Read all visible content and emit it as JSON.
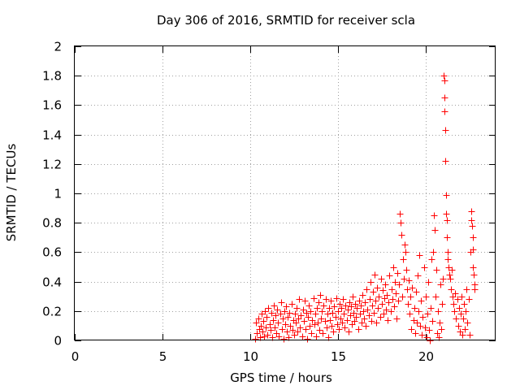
{
  "chart_data": {
    "type": "scatter",
    "title": "Day 306 of 2016, SRMTID for receiver scla",
    "xlabel": "GPS time / hours",
    "ylabel": "SRMTID / TECUs",
    "xlim": [
      0,
      24
    ],
    "ylim": [
      0,
      2
    ],
    "xticks": [
      0,
      5,
      10,
      15,
      20
    ],
    "xtick_labels": [
      "0",
      "5",
      "10",
      "15",
      "20"
    ],
    "yticks": [
      0,
      0.2,
      0.4,
      0.6,
      0.8,
      1,
      1.2,
      1.4,
      1.6,
      1.8,
      2
    ],
    "ytick_labels": [
      "0",
      "0.2",
      "0.4",
      "0.6",
      "0.8",
      "1",
      "1.2",
      "1.4",
      "1.6",
      "1.8",
      "2"
    ],
    "grid": true,
    "marker": "+",
    "color": "#ff0000",
    "series": [
      {
        "name": "scla",
        "points": [
          [
            10.3,
            0.01
          ],
          [
            10.35,
            0.12
          ],
          [
            10.4,
            0.05
          ],
          [
            10.45,
            0.15
          ],
          [
            10.5,
            0.08
          ],
          [
            10.55,
            0.02
          ],
          [
            10.6,
            0.1
          ],
          [
            10.65,
            0.18
          ],
          [
            10.7,
            0.06
          ],
          [
            10.75,
            0.13
          ],
          [
            10.8,
            0.03
          ],
          [
            10.85,
            0.2
          ],
          [
            10.9,
            0.09
          ],
          [
            10.95,
            0.16
          ],
          [
            11.0,
            0.04
          ],
          [
            11.05,
            0.22
          ],
          [
            11.1,
            0.11
          ],
          [
            11.15,
            0.07
          ],
          [
            11.2,
            0.19
          ],
          [
            11.25,
            0.02
          ],
          [
            11.3,
            0.14
          ],
          [
            11.35,
            0.24
          ],
          [
            11.4,
            0.09
          ],
          [
            11.45,
            0.17
          ],
          [
            11.5,
            0.05
          ],
          [
            11.55,
            0.21
          ],
          [
            11.6,
            0.12
          ],
          [
            11.65,
            0.03
          ],
          [
            11.7,
            0.18
          ],
          [
            11.75,
            0.26
          ],
          [
            11.8,
            0.08
          ],
          [
            11.85,
            0.15
          ],
          [
            11.9,
            0.01
          ],
          [
            11.95,
            0.2
          ],
          [
            12.0,
            0.11
          ],
          [
            12.05,
            0.23
          ],
          [
            12.1,
            0.06
          ],
          [
            12.15,
            0.16
          ],
          [
            12.2,
            0.02
          ],
          [
            12.25,
            0.19
          ],
          [
            12.3,
            0.1
          ],
          [
            12.35,
            0.25
          ],
          [
            12.4,
            0.07
          ],
          [
            12.45,
            0.14
          ],
          [
            12.5,
            0.04
          ],
          [
            12.55,
            0.18
          ],
          [
            12.6,
            0.12
          ],
          [
            12.65,
            0.22
          ],
          [
            12.7,
            0.06
          ],
          [
            12.75,
            0.15
          ],
          [
            12.8,
            0.28
          ],
          [
            12.85,
            0.09
          ],
          [
            12.9,
            0.17
          ],
          [
            12.95,
            0.03
          ],
          [
            13.0,
            0.21
          ],
          [
            13.05,
            0.13
          ],
          [
            13.1,
            0.27
          ],
          [
            13.15,
            0.08
          ],
          [
            13.2,
            0.19
          ],
          [
            13.25,
            0.01
          ],
          [
            13.3,
            0.16
          ],
          [
            13.35,
            0.24
          ],
          [
            13.4,
            0.1
          ],
          [
            13.45,
            0.2
          ],
          [
            13.5,
            0.05
          ],
          [
            13.55,
            0.14
          ],
          [
            13.6,
            0.29
          ],
          [
            13.65,
            0.11
          ],
          [
            13.7,
            0.18
          ],
          [
            13.75,
            0.03
          ],
          [
            13.8,
            0.22
          ],
          [
            13.85,
            0.12
          ],
          [
            13.9,
            0.26
          ],
          [
            13.95,
            0.07
          ],
          [
            14.0,
            0.31
          ],
          [
            14.05,
            0.15
          ],
          [
            14.1,
            0.2
          ],
          [
            14.15,
            0.05
          ],
          [
            14.2,
            0.24
          ],
          [
            14.25,
            0.13
          ],
          [
            14.3,
            0.28
          ],
          [
            14.35,
            0.09
          ],
          [
            14.4,
            0.18
          ],
          [
            14.45,
            0.02
          ],
          [
            14.5,
            0.22
          ],
          [
            14.55,
            0.14
          ],
          [
            14.6,
            0.27
          ],
          [
            14.65,
            0.1
          ],
          [
            14.7,
            0.19
          ],
          [
            14.75,
            0.06
          ],
          [
            14.8,
            0.23
          ],
          [
            14.85,
            0.16
          ],
          [
            14.9,
            0.29
          ],
          [
            14.95,
            0.11
          ],
          [
            15.0,
            0.2
          ],
          [
            15.05,
            0.08
          ],
          [
            15.1,
            0.25
          ],
          [
            15.15,
            0.15
          ],
          [
            15.2,
            0.22
          ],
          [
            15.25,
            0.12
          ],
          [
            15.3,
            0.28
          ],
          [
            15.35,
            0.18
          ],
          [
            15.4,
            0.09
          ],
          [
            15.45,
            0.24
          ],
          [
            15.5,
            0.14
          ],
          [
            15.55,
            0.21
          ],
          [
            15.6,
            0.06
          ],
          [
            15.65,
            0.26
          ],
          [
            15.7,
            0.17
          ],
          [
            15.75,
            0.23
          ],
          [
            15.8,
            0.11
          ],
          [
            15.85,
            0.3
          ],
          [
            15.9,
            0.19
          ],
          [
            15.95,
            0.13
          ],
          [
            16.0,
            0.25
          ],
          [
            16.05,
            0.16
          ],
          [
            16.1,
            0.22
          ],
          [
            16.15,
            0.08
          ],
          [
            16.2,
            0.27
          ],
          [
            16.25,
            0.18
          ],
          [
            16.3,
            0.24
          ],
          [
            16.35,
            0.12
          ],
          [
            16.4,
            0.31
          ],
          [
            16.45,
            0.2
          ],
          [
            16.5,
            0.15
          ],
          [
            16.55,
            0.26
          ],
          [
            16.6,
            0.1
          ],
          [
            16.65,
            0.35
          ],
          [
            16.7,
            0.21
          ],
          [
            16.75,
            0.17
          ],
          [
            16.8,
            0.28
          ],
          [
            16.85,
            0.4
          ],
          [
            16.9,
            0.13
          ],
          [
            16.95,
            0.24
          ],
          [
            17.0,
            0.33
          ],
          [
            17.05,
            0.19
          ],
          [
            17.1,
            0.45
          ],
          [
            17.15,
            0.27
          ],
          [
            17.2,
            0.12
          ],
          [
            17.25,
            0.36
          ],
          [
            17.3,
            0.22
          ],
          [
            17.35,
            0.3
          ],
          [
            17.4,
            0.16
          ],
          [
            17.45,
            0.42
          ],
          [
            17.5,
            0.25
          ],
          [
            17.55,
            0.34
          ],
          [
            17.6,
            0.18
          ],
          [
            17.65,
            0.29
          ],
          [
            17.7,
            0.38
          ],
          [
            17.75,
            0.21
          ],
          [
            17.8,
            0.31
          ],
          [
            17.85,
            0.14
          ],
          [
            17.9,
            0.26
          ],
          [
            17.95,
            0.44
          ],
          [
            18.0,
            0.2
          ],
          [
            18.05,
            0.35
          ],
          [
            18.1,
            0.28
          ],
          [
            18.15,
            0.5
          ],
          [
            18.2,
            0.23
          ],
          [
            18.25,
            0.4
          ],
          [
            18.3,
            0.32
          ],
          [
            18.35,
            0.15
          ],
          [
            18.4,
            0.46
          ],
          [
            18.45,
            0.27
          ],
          [
            18.5,
            0.38
          ],
          [
            18.55,
            0.86
          ],
          [
            18.6,
            0.8
          ],
          [
            18.62,
            0.72
          ],
          [
            18.65,
            0.3
          ],
          [
            18.7,
            0.55
          ],
          [
            18.75,
            0.42
          ],
          [
            18.8,
            0.65
          ],
          [
            18.85,
            0.6
          ],
          [
            18.9,
            0.48
          ],
          [
            18.95,
            0.35
          ],
          [
            19.0,
            0.25
          ],
          [
            19.05,
            0.41
          ],
          [
            19.1,
            0.18
          ],
          [
            19.15,
            0.3
          ],
          [
            19.2,
            0.08
          ],
          [
            19.25,
            0.36
          ],
          [
            19.3,
            0.14
          ],
          [
            19.35,
            0.22
          ],
          [
            19.4,
            0.05
          ],
          [
            19.45,
            0.33
          ],
          [
            19.5,
            0.12
          ],
          [
            19.55,
            0.44
          ],
          [
            19.6,
            0.2
          ],
          [
            19.65,
            0.58
          ],
          [
            19.7,
            0.1
          ],
          [
            19.75,
            0.27
          ],
          [
            19.8,
            0.04
          ],
          [
            19.85,
            0.16
          ],
          [
            19.9,
            0.5
          ],
          [
            19.95,
            0.09
          ],
          [
            20.0,
            0.3
          ],
          [
            20.05,
            0.02
          ],
          [
            20.1,
            0.18
          ],
          [
            20.15,
            0.4
          ],
          [
            20.2,
            0.07
          ],
          [
            20.25,
            0.0
          ],
          [
            20.3,
            0.22
          ],
          [
            20.35,
            0.55
          ],
          [
            20.4,
            0.13
          ],
          [
            20.45,
            0.6
          ],
          [
            20.5,
            0.85
          ],
          [
            20.52,
            0.75
          ],
          [
            20.55,
            0.3
          ],
          [
            20.6,
            0.48
          ],
          [
            20.65,
            0.05
          ],
          [
            20.7,
            0.2
          ],
          [
            20.75,
            0.02
          ],
          [
            20.8,
            0.12
          ],
          [
            20.85,
            0.38
          ],
          [
            20.9,
            0.08
          ],
          [
            20.95,
            0.25
          ],
          [
            21.0,
            0.42
          ],
          [
            21.05,
            1.8
          ],
          [
            21.06,
            1.77
          ],
          [
            21.08,
            1.65
          ],
          [
            21.1,
            1.56
          ],
          [
            21.12,
            1.43
          ],
          [
            21.14,
            1.22
          ],
          [
            21.16,
            0.99
          ],
          [
            21.18,
            0.86
          ],
          [
            21.2,
            0.82
          ],
          [
            21.22,
            0.7
          ],
          [
            21.25,
            0.6
          ],
          [
            21.28,
            0.55
          ],
          [
            21.3,
            0.5
          ],
          [
            21.35,
            0.45
          ],
          [
            21.4,
            0.42
          ],
          [
            21.45,
            0.35
          ],
          [
            21.5,
            0.48
          ],
          [
            21.55,
            0.3
          ],
          [
            21.6,
            0.25
          ],
          [
            21.65,
            0.2
          ],
          [
            21.7,
            0.32
          ],
          [
            21.75,
            0.15
          ],
          [
            21.8,
            0.28
          ],
          [
            21.85,
            0.1
          ],
          [
            21.9,
            0.22
          ],
          [
            21.95,
            0.06
          ],
          [
            22.0,
            0.18
          ],
          [
            22.05,
            0.3
          ],
          [
            22.1,
            0.04
          ],
          [
            22.15,
            0.15
          ],
          [
            22.2,
            0.25
          ],
          [
            22.25,
            0.08
          ],
          [
            22.3,
            0.2
          ],
          [
            22.35,
            0.35
          ],
          [
            22.4,
            0.12
          ],
          [
            22.45,
            0.28
          ],
          [
            22.5,
            0.04
          ],
          [
            22.55,
            0.6
          ],
          [
            22.6,
            0.88
          ],
          [
            22.62,
            0.82
          ],
          [
            22.65,
            0.78
          ],
          [
            22.68,
            0.7
          ],
          [
            22.7,
            0.62
          ],
          [
            22.72,
            0.5
          ],
          [
            22.75,
            0.45
          ],
          [
            22.78,
            0.38
          ],
          [
            22.8,
            0.35
          ]
        ]
      }
    ]
  }
}
